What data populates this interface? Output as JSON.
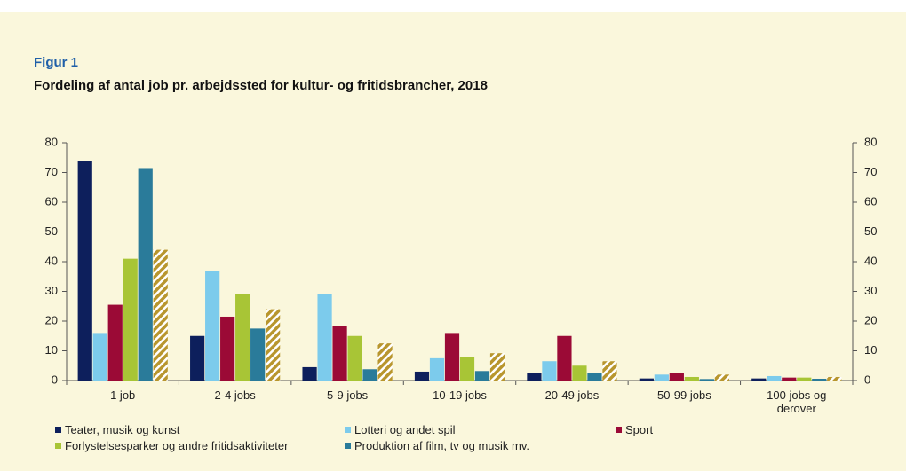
{
  "chart_data": {
    "type": "bar",
    "label": "Figur 1",
    "title": "Fordeling af antal job pr. arbejdssted for kultur- og fritidsbrancher, 2018",
    "categories": [
      "1 job",
      "2-4 jobs",
      "5-9 jobs",
      "10-19 jobs",
      "20-49 jobs",
      "50-99 jobs",
      "100 jobs og derover"
    ],
    "series": [
      {
        "name": "Teater, musik og kunst",
        "color": "#0d1f5c",
        "values": [
          74,
          15,
          4.5,
          3,
          2.5,
          0.7,
          0.7
        ]
      },
      {
        "name": "Lotteri og andet spil",
        "color": "#7ccbec",
        "values": [
          16,
          37,
          29,
          7.5,
          6.5,
          2,
          1.5
        ]
      },
      {
        "name": "Sport",
        "color": "#9b0a36",
        "values": [
          25.5,
          21.5,
          18.5,
          16,
          15,
          2.5,
          1
        ]
      },
      {
        "name": "Forlystelsesparker og andre fritidsaktiviteter",
        "color": "#a8c536",
        "values": [
          41,
          29,
          15,
          8,
          5,
          1.2,
          1
        ]
      },
      {
        "name": "Produktion af film, tv og musik mv.",
        "color": "#2a7b9a",
        "values": [
          71.5,
          17.5,
          3.8,
          3.2,
          2.5,
          0.5,
          0.6
        ]
      },
      {
        "color": "#b8962e",
        "hatch": true,
        "values": [
          44,
          24,
          12.5,
          9.2,
          6.5,
          2,
          1.2
        ]
      }
    ],
    "ylim": [
      0,
      80
    ],
    "yticks": [
      0,
      10,
      20,
      30,
      40,
      50,
      60,
      70,
      80
    ],
    "y2lim": [
      0,
      80
    ],
    "y2ticks": [
      0,
      10,
      20,
      30,
      40,
      50,
      60,
      70,
      80
    ],
    "grid": false
  }
}
